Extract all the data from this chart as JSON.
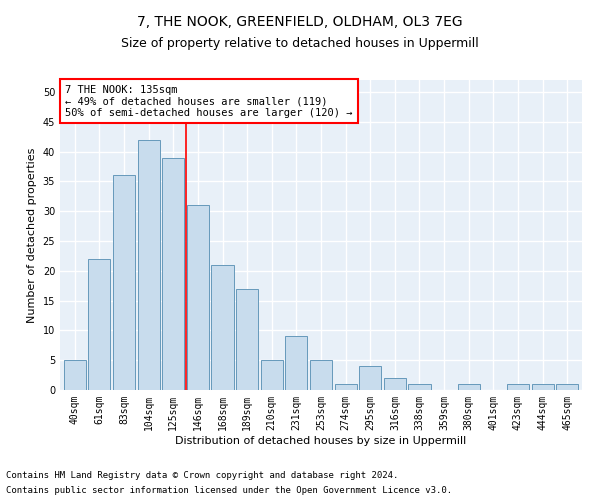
{
  "title": "7, THE NOOK, GREENFIELD, OLDHAM, OL3 7EG",
  "subtitle": "Size of property relative to detached houses in Uppermill",
  "xlabel": "Distribution of detached houses by size in Uppermill",
  "ylabel": "Number of detached properties",
  "categories": [
    "40sqm",
    "61sqm",
    "83sqm",
    "104sqm",
    "125sqm",
    "146sqm",
    "168sqm",
    "189sqm",
    "210sqm",
    "231sqm",
    "253sqm",
    "274sqm",
    "295sqm",
    "316sqm",
    "338sqm",
    "359sqm",
    "380sqm",
    "401sqm",
    "423sqm",
    "444sqm",
    "465sqm"
  ],
  "values": [
    5,
    22,
    36,
    42,
    39,
    31,
    21,
    17,
    5,
    9,
    5,
    1,
    4,
    2,
    1,
    0,
    1,
    0,
    1,
    1,
    1
  ],
  "bar_color": "#c8dced",
  "bar_edge_color": "#6699bb",
  "vline_x": 4.5,
  "vline_color": "red",
  "ylim": [
    0,
    52
  ],
  "yticks": [
    0,
    5,
    10,
    15,
    20,
    25,
    30,
    35,
    40,
    45,
    50
  ],
  "annotation_text": "7 THE NOOK: 135sqm\n← 49% of detached houses are smaller (119)\n50% of semi-detached houses are larger (120) →",
  "annotation_box_color": "#ffffff",
  "annotation_box_edge_color": "red",
  "footer_line1": "Contains HM Land Registry data © Crown copyright and database right 2024.",
  "footer_line2": "Contains public sector information licensed under the Open Government Licence v3.0.",
  "bg_color": "#ffffff",
  "plot_bg_color": "#e8f0f8",
  "grid_color": "#ffffff",
  "title_fontsize": 10,
  "subtitle_fontsize": 9,
  "axis_label_fontsize": 8,
  "tick_fontsize": 7,
  "annotation_fontsize": 7.5,
  "footer_fontsize": 6.5
}
